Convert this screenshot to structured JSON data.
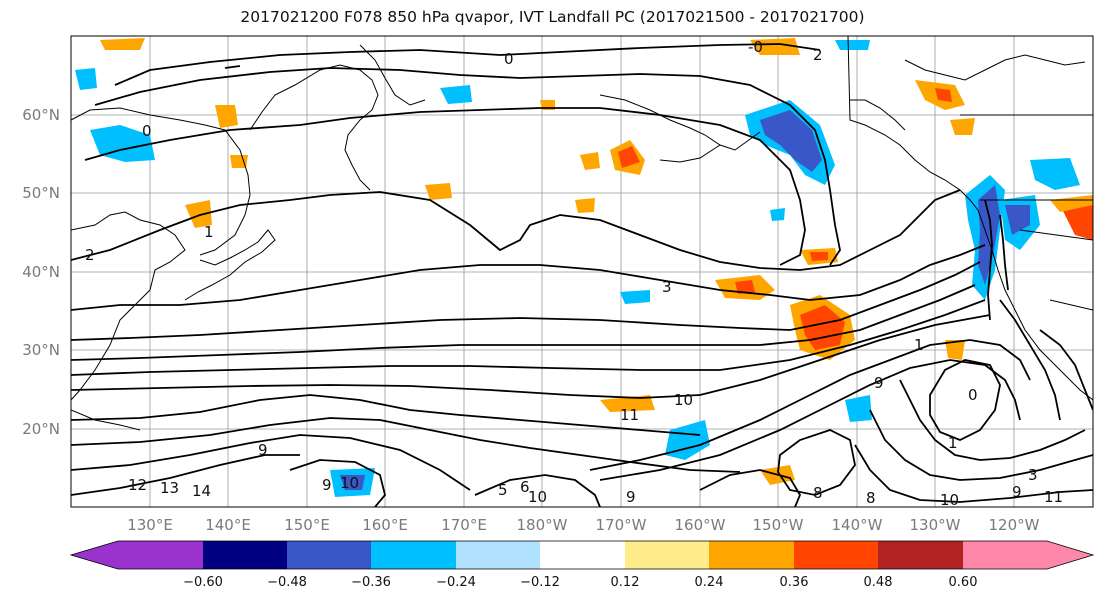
{
  "title": "2017021200 F078 850 hPa qvapor, IVT Landfall PC (2017021500 - 2017021700)",
  "y_ticks": [
    "60°N",
    "50°N",
    "40°N",
    "30°N",
    "20°N"
  ],
  "x_ticks": [
    "130°E",
    "140°E",
    "150°E",
    "160°E",
    "170°E",
    "180°W",
    "170°W",
    "160°W",
    "150°W",
    "140°W",
    "130°W",
    "120°W"
  ],
  "colorbar": {
    "colors": [
      "#9a32cd",
      "#000080",
      "#3a57c8",
      "#00bfff",
      "#b0e2ff",
      "#ffffff",
      "#ffec8b",
      "#ffa500",
      "#ff4500",
      "#b22222",
      "#ff88aa"
    ],
    "ticks": [
      "−0.60",
      "−0.48",
      "−0.36",
      "−0.24",
      "−0.12",
      "0.12",
      "0.24",
      "0.36",
      "0.48",
      "0.60"
    ]
  },
  "contour_labels": [
    "0",
    "2",
    "-0",
    "3",
    "1",
    "1",
    "11",
    "10",
    "12",
    "13",
    "14",
    "9",
    "9",
    "10",
    "5",
    "6",
    "8",
    "8",
    "10",
    "9",
    "1",
    "0",
    "10",
    "9",
    "11",
    "3",
    "9",
    "2",
    "0"
  ]
}
